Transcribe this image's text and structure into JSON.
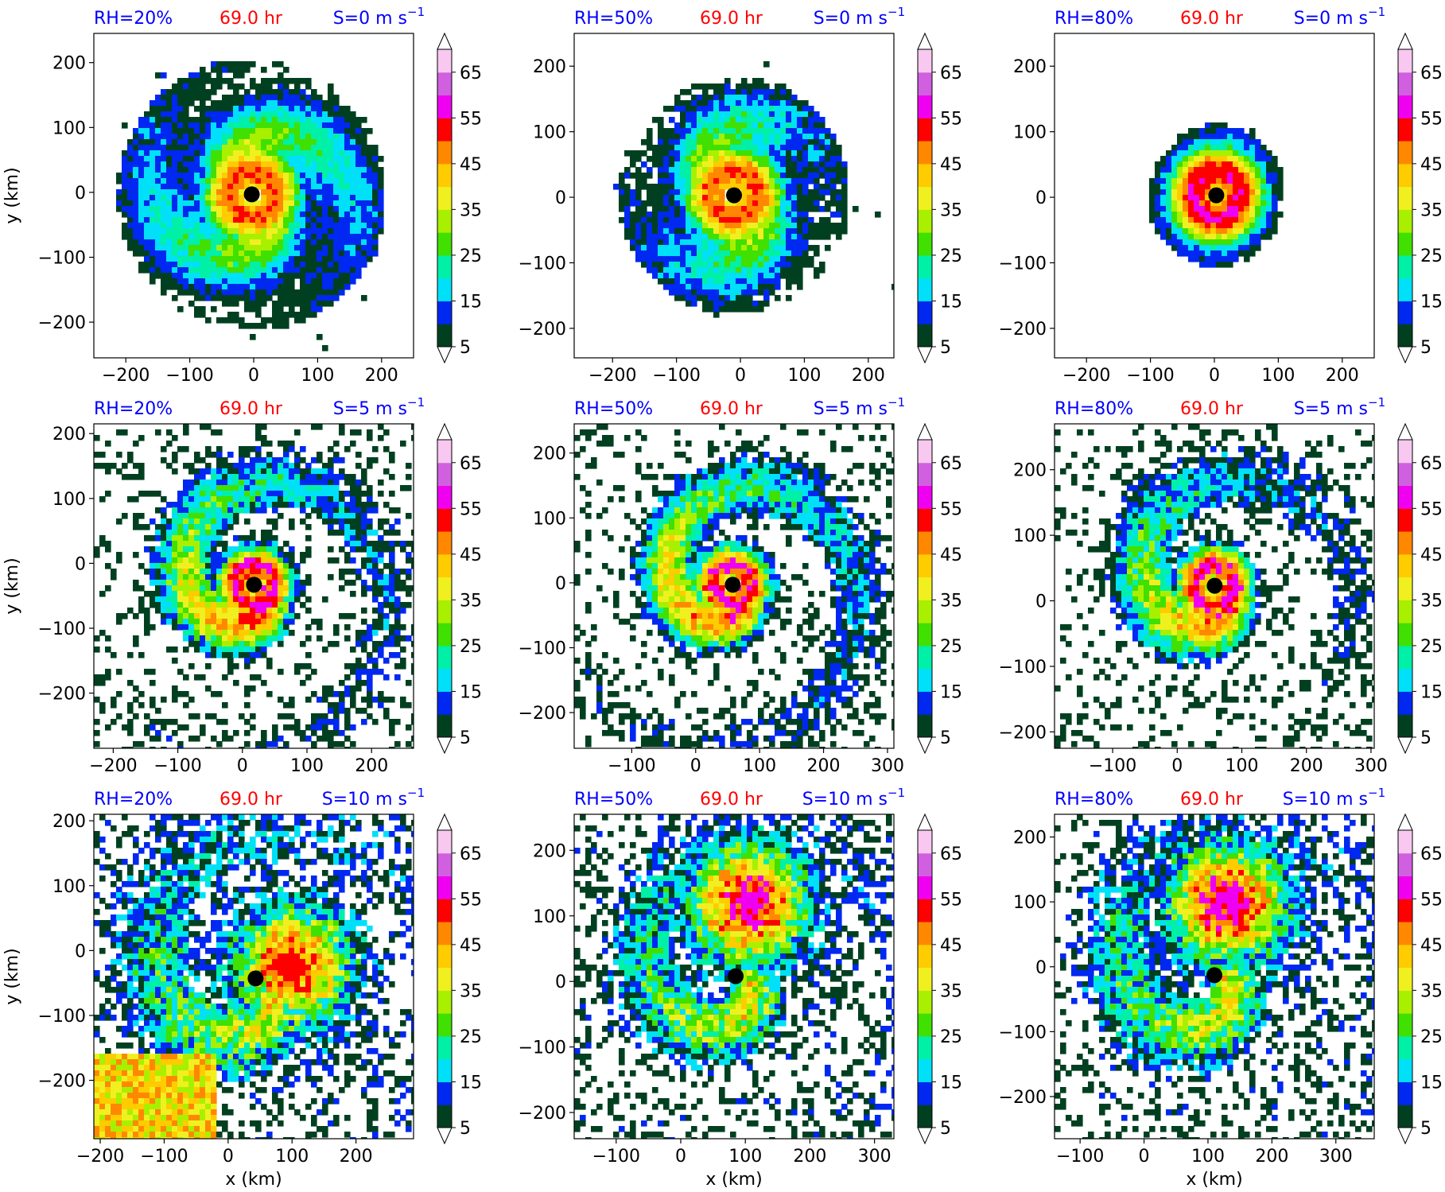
{
  "colorbar": {
    "levels": [
      5,
      10,
      15,
      20,
      25,
      30,
      35,
      40,
      45,
      50,
      55,
      60,
      65,
      70
    ],
    "tick_labels": [
      "5",
      "15",
      "25",
      "35",
      "45",
      "55",
      "65"
    ],
    "colors": [
      "#004020",
      "#0028f0",
      "#00e0f8",
      "#00f0a8",
      "#40e000",
      "#a8f000",
      "#f0f020",
      "#ffcc00",
      "#ff8800",
      "#ff0000",
      "#f000f0",
      "#d060e0",
      "#f8c8f0"
    ],
    "extend": "both"
  },
  "chart_data": [
    {
      "type": "contour",
      "rh_label": "RH=20%",
      "time_label": "69.0 hr",
      "shear_label": "S=0 m s",
      "shear_exp": "−1",
      "ylabel": "y (km)",
      "xlabel": "",
      "xticks": [
        "−200",
        "−100",
        "0",
        "100",
        "200"
      ],
      "yticks": [
        "200",
        "100",
        "0",
        "−100",
        "−200"
      ],
      "xlim": [
        -250,
        250
      ],
      "ylim": [
        -255,
        245
      ],
      "center": [
        -3,
        -3
      ],
      "max_level": 50
    },
    {
      "type": "contour",
      "rh_label": "RH=50%",
      "time_label": "69.0 hr",
      "shear_label": "S=0 m s",
      "shear_exp": "−1",
      "ylabel": "",
      "xlabel": "",
      "xticks": [
        "−200",
        "−100",
        "0",
        "100",
        "200"
      ],
      "yticks": [
        "200",
        "100",
        "0",
        "−100",
        "−200"
      ],
      "xlim": [
        -260,
        240
      ],
      "ylim": [
        -245,
        250
      ],
      "center": [
        -10,
        3
      ],
      "max_level": 50
    },
    {
      "type": "contour",
      "rh_label": "RH=80%",
      "time_label": "69.0 hr",
      "shear_label": "S=0 m s",
      "shear_exp": "−1",
      "ylabel": "",
      "xlabel": "",
      "xticks": [
        "−200",
        "−100",
        "0",
        "100",
        "200"
      ],
      "yticks": [
        "200",
        "100",
        "0",
        "−100",
        "−200"
      ],
      "xlim": [
        -250,
        250
      ],
      "ylim": [
        -245,
        250
      ],
      "center": [
        3,
        3
      ],
      "max_level": 55
    },
    {
      "type": "contour",
      "rh_label": "RH=20%",
      "time_label": "69.0 hr",
      "shear_label": "S=5 m s",
      "shear_exp": "−1",
      "ylabel": "y (km)",
      "xlabel": "",
      "xticks": [
        "−200",
        "−100",
        "0",
        "100",
        "200"
      ],
      "yticks": [
        "200",
        "100",
        "0",
        "−100",
        "−200"
      ],
      "xlim": [
        -230,
        265
      ],
      "ylim": [
        -285,
        215
      ],
      "center": [
        18,
        -33
      ],
      "max_level": 55
    },
    {
      "type": "contour",
      "rh_label": "RH=50%",
      "time_label": "69.0 hr",
      "shear_label": "S=5 m s",
      "shear_exp": "−1",
      "ylabel": "",
      "xlabel": "",
      "xticks": [
        "−100",
        "0",
        "100",
        "200",
        "300"
      ],
      "yticks": [
        "200",
        "100",
        "0",
        "−100",
        "−200"
      ],
      "xlim": [
        -190,
        310
      ],
      "ylim": [
        -255,
        245
      ],
      "center": [
        58,
        -3
      ],
      "max_level": 55
    },
    {
      "type": "contour",
      "rh_label": "RH=80%",
      "time_label": "69.0 hr",
      "shear_label": "S=5 m s",
      "shear_exp": "−1",
      "ylabel": "",
      "xlabel": "",
      "xticks": [
        "−100",
        "0",
        "100",
        "200",
        "300"
      ],
      "yticks": [
        "200",
        "100",
        "0",
        "−100",
        "−200"
      ],
      "xlim": [
        -190,
        305
      ],
      "ylim": [
        -225,
        270
      ],
      "center": [
        58,
        23
      ],
      "max_level": 55
    },
    {
      "type": "contour",
      "rh_label": "RH=20%",
      "time_label": "69.0 hr",
      "shear_label": "S=10 m s",
      "shear_exp": "−1",
      "ylabel": "y (km)",
      "xlabel": "x (km)",
      "xticks": [
        "−200",
        "−100",
        "0",
        "100",
        "200"
      ],
      "yticks": [
        "200",
        "100",
        "0",
        "−100",
        "−200"
      ],
      "xlim": [
        -210,
        290
      ],
      "ylim": [
        -290,
        210
      ],
      "center": [
        43,
        -43
      ],
      "max_level": 50
    },
    {
      "type": "contour",
      "rh_label": "RH=50%",
      "time_label": "69.0 hr",
      "shear_label": "S=10 m s",
      "shear_exp": "−1",
      "ylabel": "",
      "xlabel": "x (km)",
      "xticks": [
        "−100",
        "0",
        "100",
        "200",
        "300"
      ],
      "yticks": [
        "200",
        "100",
        "0",
        "−100",
        "−200"
      ],
      "xlim": [
        -165,
        330
      ],
      "ylim": [
        -240,
        255
      ],
      "center": [
        85,
        8
      ],
      "max_level": 55
    },
    {
      "type": "contour",
      "rh_label": "RH=80%",
      "time_label": "69.0 hr",
      "shear_label": "S=10 m s",
      "shear_exp": "−1",
      "ylabel": "",
      "xlabel": "x (km)",
      "xticks": [
        "−100",
        "0",
        "100",
        "200",
        "300"
      ],
      "yticks": [
        "200",
        "100",
        "0",
        "−100",
        "−200"
      ],
      "xlim": [
        -140,
        360
      ],
      "ylim": [
        -265,
        235
      ],
      "center": [
        110,
        -13
      ],
      "max_level": 55
    }
  ]
}
